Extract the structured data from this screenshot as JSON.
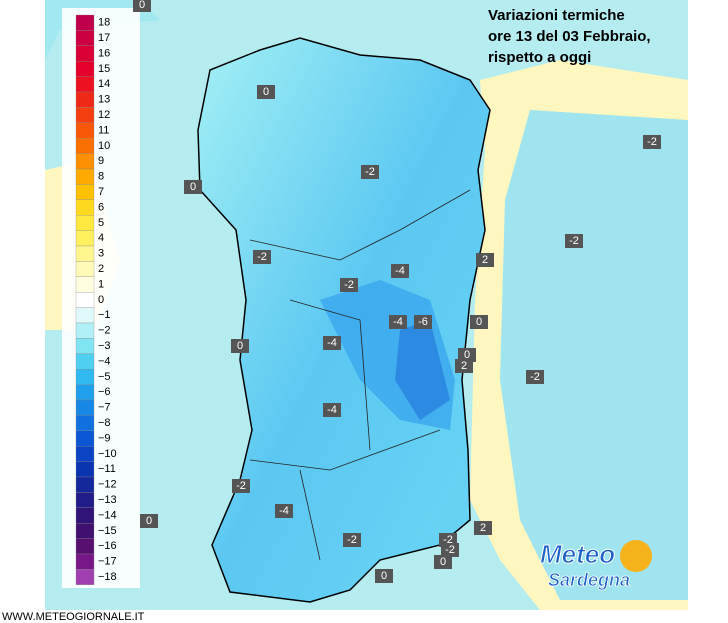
{
  "title": [
    "Variazioni termiche",
    "ore 13 del 03 Febbraio,",
    "rispetto a oggi"
  ],
  "legend": {
    "labels": [
      "18",
      "17",
      "16",
      "15",
      "14",
      "13",
      "12",
      "11",
      "10",
      "9",
      "8",
      "7",
      "6",
      "5",
      "4",
      "3",
      "2",
      "1",
      "0",
      "−1",
      "−2",
      "−3",
      "−4",
      "−5",
      "−6",
      "−7",
      "−8",
      "−9",
      "−10",
      "−11",
      "−12",
      "−13",
      "−14",
      "−15",
      "−16",
      "−17",
      "−18"
    ]
  },
  "map_labels": [
    "0",
    "0",
    "-2",
    "-2",
    "0",
    "-2",
    "-2",
    "2",
    "-4",
    "-2",
    "-4",
    "-6",
    "0",
    "0",
    "-4",
    "0",
    "2",
    "-2",
    "-4",
    "-2",
    "-4",
    "0",
    "2",
    "-2",
    "-2",
    "-2",
    "0",
    "0"
  ],
  "logo": {
    "line1": "Meteo",
    "line2": "Sardegna"
  },
  "footer": "WWW.METEOGIORNALE.IT"
}
